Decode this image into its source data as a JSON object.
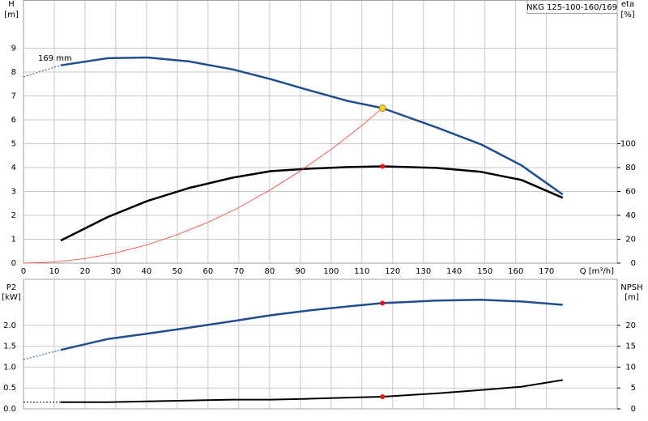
{
  "chart_data": [
    {
      "type": "line",
      "title": "NKG 125-100-160/169",
      "annotation": "169 mm",
      "xlabel": "Q [m³/h]",
      "ylabel": "H",
      "yunit": "[m]",
      "y2label": "eta",
      "y2unit": "[%]",
      "xlim": [
        0,
        193
      ],
      "xticks": [
        0,
        10,
        20,
        30,
        40,
        50,
        60,
        70,
        80,
        90,
        100,
        110,
        120,
        130,
        140,
        150,
        160,
        170
      ],
      "ylim": [
        0,
        11
      ],
      "yticks": [
        0,
        1,
        2,
        3,
        4,
        5,
        6,
        7,
        8,
        9
      ],
      "y2lim": [
        0,
        220
      ],
      "y2ticks": [
        0,
        20,
        40,
        60,
        80,
        100
      ],
      "grid": true,
      "series": [
        {
          "color": "#1f4f8c",
          "axis": "y",
          "dashed": true,
          "width": 1,
          "x": [
            0,
            12.1
          ],
          "values": [
            7.8,
            8.28
          ]
        },
        {
          "color": "#1f4f8c",
          "axis": "y",
          "dashed": false,
          "width": 2.5,
          "x": [
            12.1,
            27.3,
            40.2,
            53.6,
            68.1,
            80.4,
            92.2,
            105.4,
            116.7,
            134.3,
            148.8,
            161.9,
            175.3
          ],
          "values": [
            8.28,
            8.58,
            8.61,
            8.45,
            8.11,
            7.7,
            7.26,
            6.79,
            6.49,
            5.68,
            4.97,
            4.09,
            2.87
          ]
        },
        {
          "color": "#000000",
          "axis": "y2",
          "dashed": false,
          "width": 2.5,
          "x": [
            12.1,
            27.3,
            40.2,
            53.6,
            68.1,
            80.4,
            92.2,
            105.4,
            116.7,
            134.3,
            148.8,
            161.9,
            175.3
          ],
          "values": [
            18.9,
            38.5,
            52,
            62.8,
            71.6,
            77,
            79,
            80.4,
            81,
            79.7,
            76.4,
            69.6,
            54.7
          ]
        },
        {
          "color": "#f04030",
          "axis": "y",
          "dashed": false,
          "width": 0.8,
          "x": [
            0,
            10,
            20,
            30,
            40,
            50,
            60,
            70,
            80,
            90,
            100,
            110,
            116.7
          ],
          "values": [
            0,
            0.048,
            0.19,
            0.43,
            0.76,
            1.19,
            1.71,
            2.33,
            3.05,
            3.86,
            4.76,
            5.76,
            6.49
          ]
        }
      ],
      "points": [
        {
          "x": 116.7,
          "y": 6.49,
          "color": "#ffd21e",
          "axis": "y"
        },
        {
          "x": 116.7,
          "y": 81,
          "color": "#e81010",
          "axis": "y2"
        }
      ]
    },
    {
      "type": "line",
      "ylabel": "P2",
      "yunit": "[kW]",
      "y2label": "NPSH",
      "y2unit": "[m]",
      "ylim": [
        0,
        3.1
      ],
      "yticks": [
        {
          "value": 0,
          "label": "0.0"
        },
        0.5,
        {
          "value": 1,
          "label": "1.0"
        },
        1.5,
        {
          "value": 2,
          "label": "2.0"
        }
      ],
      "y2lim": [
        0,
        31
      ],
      "y2ticks": [
        0,
        5,
        10,
        15,
        20
      ],
      "grid": true,
      "series": [
        {
          "color": "#1f4f8c",
          "axis": "y",
          "dashed": true,
          "width": 1,
          "x": [
            0,
            12.1
          ],
          "values": [
            1.18,
            1.41
          ]
        },
        {
          "color": "#1f4f8c",
          "axis": "y",
          "dashed": false,
          "width": 2.5,
          "x": [
            12.1,
            27.3,
            40.2,
            53.6,
            68.1,
            80.4,
            92.2,
            105.4,
            116.7,
            134.3,
            148.8,
            161.9,
            175.3
          ],
          "values": [
            1.41,
            1.67,
            1.8,
            1.94,
            2.1,
            2.24,
            2.35,
            2.45,
            2.53,
            2.59,
            2.61,
            2.57,
            2.49
          ]
        },
        {
          "color": "#000000",
          "axis": "y2",
          "dashed": true,
          "width": 1,
          "x": [
            0,
            12.1
          ],
          "values": [
            1.6,
            1.6
          ]
        },
        {
          "color": "#000000",
          "axis": "y2",
          "dashed": false,
          "width": 2,
          "x": [
            12.1,
            27.3,
            40.2,
            53.6,
            68.1,
            80.4,
            92.2,
            105.4,
            116.7,
            134.3,
            148.8,
            161.9,
            175.3
          ],
          "values": [
            1.6,
            1.6,
            1.8,
            2,
            2.2,
            2.2,
            2.4,
            2.7,
            2.9,
            3.7,
            4.5,
            5.3,
            6.9
          ]
        }
      ],
      "points": [
        {
          "x": 116.7,
          "y": 2.53,
          "color": "#e81010",
          "axis": "y"
        },
        {
          "x": 116.7,
          "y": 2.9,
          "color": "#e81010",
          "axis": "y2"
        }
      ]
    }
  ]
}
